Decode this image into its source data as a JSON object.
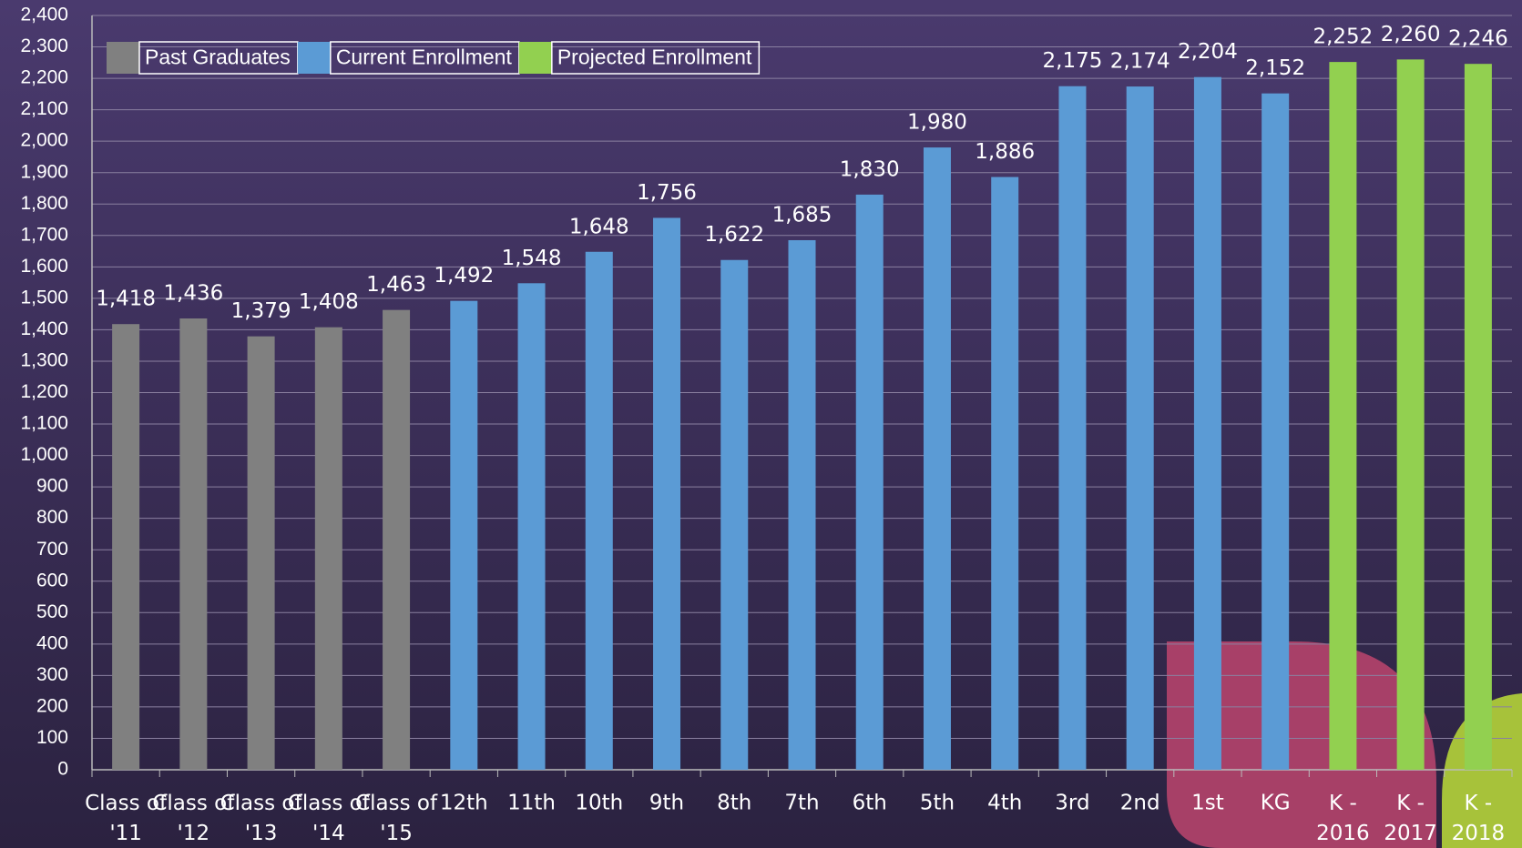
{
  "chart_data": {
    "type": "bar",
    "categories": [
      "Class of '11",
      "Class of '12",
      "Class of '13",
      "Class of '14",
      "Class of '15",
      "12th",
      "11th",
      "10th",
      "9th",
      "8th",
      "7th",
      "6th",
      "5th",
      "4th",
      "3rd",
      "2nd",
      "1st",
      "KG",
      "K - 2016",
      "K - 2017",
      "K - 2018"
    ],
    "series": [
      {
        "name": "Past Graduates",
        "color": "#808080",
        "values": [
          1418,
          1436,
          1379,
          1408,
          1463,
          null,
          null,
          null,
          null,
          null,
          null,
          null,
          null,
          null,
          null,
          null,
          null,
          null,
          null,
          null,
          null
        ],
        "value_labels": [
          "1,418",
          "1,436",
          "1,379",
          "1,408",
          "1,463",
          null,
          null,
          null,
          null,
          null,
          null,
          null,
          null,
          null,
          null,
          null,
          null,
          null,
          null,
          null,
          null
        ]
      },
      {
        "name": "Current Enrollment",
        "color": "#5b9bd5",
        "values": [
          null,
          null,
          null,
          null,
          null,
          1492,
          1548,
          1648,
          1756,
          1622,
          1685,
          1830,
          1980,
          1886,
          2175,
          2174,
          2204,
          2152,
          null,
          null,
          null
        ],
        "value_labels": [
          null,
          null,
          null,
          null,
          null,
          "1,492",
          "1,548",
          "1,648",
          "1,756",
          "1,622",
          "1,685",
          "1,830",
          "1,980",
          "1,886",
          "2,175",
          "2,174",
          "2,204",
          "2,152",
          null,
          null,
          null
        ]
      },
      {
        "name": "Projected Enrollment",
        "color": "#92d050",
        "values": [
          null,
          null,
          null,
          null,
          null,
          null,
          null,
          null,
          null,
          null,
          null,
          null,
          null,
          null,
          null,
          null,
          null,
          null,
          2252,
          2260,
          2246
        ],
        "value_labels": [
          null,
          null,
          null,
          null,
          null,
          null,
          null,
          null,
          null,
          null,
          null,
          null,
          null,
          null,
          null,
          null,
          null,
          null,
          "2,252",
          "2,260",
          "2,246"
        ]
      }
    ],
    "ylim": [
      0,
      2400
    ],
    "yticks": [
      0,
      100,
      200,
      300,
      400,
      500,
      600,
      700,
      800,
      900,
      {
        "value": 1000,
        "label": "1,000"
      },
      {
        "value": 1100,
        "label": "1,100"
      },
      {
        "value": 1200,
        "label": "1,200"
      },
      {
        "value": 1300,
        "label": "1,300"
      },
      {
        "value": 1400,
        "label": "1,400"
      },
      {
        "value": 1500,
        "label": "1,500"
      },
      {
        "value": 1600,
        "label": "1,600"
      },
      {
        "value": 1700,
        "label": "1,700"
      },
      {
        "value": 1800,
        "label": "1,800"
      },
      {
        "value": 1900,
        "label": "1,900"
      },
      {
        "value": 2000,
        "label": "2,000"
      },
      {
        "value": 2100,
        "label": "2,100"
      },
      {
        "value": 2200,
        "label": "2,200"
      },
      {
        "value": 2300,
        "label": "2,300"
      },
      {
        "value": 2400,
        "label": "2,400"
      }
    ],
    "grid": true,
    "legend": "top-left"
  }
}
